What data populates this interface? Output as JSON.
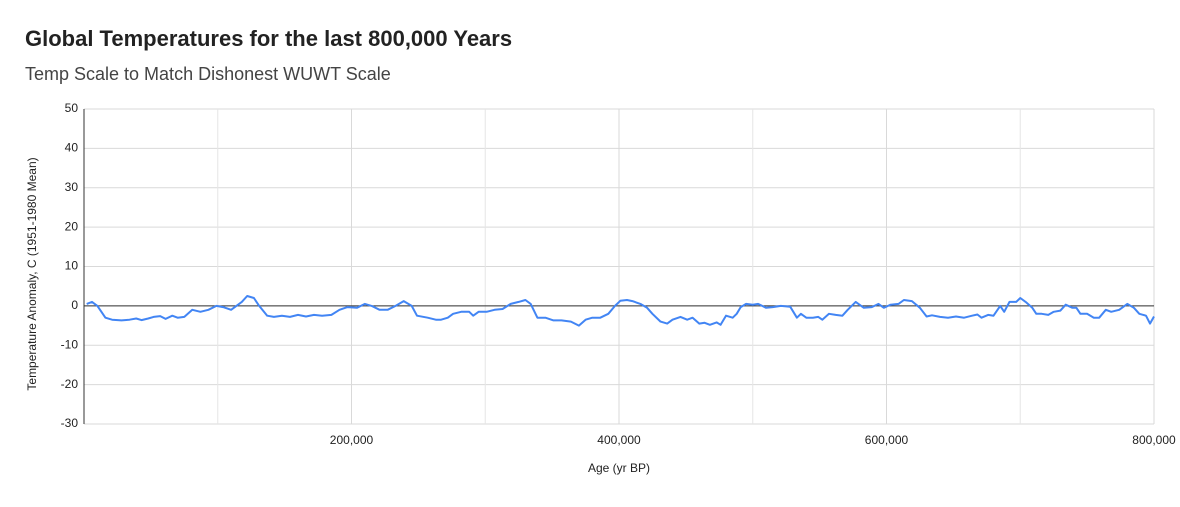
{
  "chart_data": {
    "type": "line",
    "title": "Global Temperatures for the last 800,000 Years",
    "subtitle": "Temp Scale to Match Dishonest WUWT Scale",
    "x_label": "Age (yr BP)",
    "y_label": "Temperature Anomaly, C (1951-1980 Mean)",
    "xlim": [
      0,
      800000
    ],
    "xticks": [
      {
        "value": 200000,
        "label": "200,000"
      },
      {
        "value": 400000,
        "label": "400,000"
      },
      {
        "value": 600000,
        "label": "600,000"
      },
      {
        "value": 800000,
        "label": "800,000"
      }
    ],
    "xgrid": [
      100000,
      300000,
      500000,
      700000
    ],
    "ylim": [
      -30,
      50
    ],
    "yticks": [
      -30,
      -20,
      -10,
      0,
      10,
      20,
      30,
      40,
      50
    ],
    "grid": true,
    "series": [
      {
        "name": "Temperature Anomaly",
        "color": "#4285f4",
        "x": [
          2000,
          6000,
          10000,
          16000,
          21000,
          28000,
          34000,
          39000,
          43000,
          48000,
          52000,
          57000,
          61000,
          66000,
          70000,
          75000,
          81000,
          87000,
          93000,
          99000,
          104000,
          110000,
          118000,
          122000,
          127000,
          131000,
          137000,
          142000,
          148000,
          154000,
          160000,
          166000,
          172000,
          178000,
          185000,
          191000,
          197000,
          204000,
          210000,
          215000,
          221000,
          227000,
          233000,
          239000,
          245000,
          249000,
          257000,
          263000,
          267000,
          272000,
          276000,
          282000,
          288000,
          291000,
          295000,
          301000,
          307000,
          313000,
          319000,
          325000,
          330000,
          334000,
          339000,
          345000,
          351000,
          357000,
          364000,
          370000,
          375000,
          380000,
          386000,
          392000,
          397000,
          401000,
          406000,
          410000,
          416000,
          421000,
          425000,
          431000,
          436000,
          440000,
          446000,
          451000,
          455000,
          460000,
          464000,
          468000,
          473000,
          476000,
          480000,
          485000,
          488000,
          491000,
          495000,
          500000,
          504000,
          510000,
          515000,
          521000,
          528000,
          533000,
          536000,
          540000,
          545000,
          549000,
          552000,
          557000,
          562000,
          567000,
          571000,
          577000,
          583000,
          589000,
          594000,
          598000,
          603000,
          609000,
          613000,
          619000,
          625000,
          630000,
          634000,
          640000,
          646000,
          652000,
          658000,
          664000,
          668000,
          671000,
          676000,
          680000,
          685000,
          688000,
          692000,
          697000,
          700000,
          704000,
          709000,
          712000,
          716000,
          721000,
          725000,
          730000,
          734000,
          739000,
          742000,
          745000,
          750000,
          755000,
          759000,
          764000,
          768000,
          774000,
          780000,
          785000,
          789000,
          794000,
          797000,
          800000
        ],
        "values": [
          0.5,
          1,
          0,
          -3,
          -3.5,
          -3.7,
          -3.5,
          -3.2,
          -3.6,
          -3.2,
          -2.8,
          -2.6,
          -3.3,
          -2.5,
          -3,
          -2.8,
          -1,
          -1.5,
          -1,
          0,
          -0.3,
          -1,
          1,
          2.5,
          2,
          0,
          -2.5,
          -2.8,
          -2.5,
          -2.8,
          -2.3,
          -2.7,
          -2.3,
          -2.5,
          -2.3,
          -1,
          -0.3,
          -0.5,
          0.5,
          0,
          -1,
          -1,
          0,
          1.2,
          0,
          -2.5,
          -3,
          -3.5,
          -3.5,
          -3,
          -2,
          -1.5,
          -1.5,
          -2.5,
          -1.5,
          -1.5,
          -1,
          -0.8,
          0.5,
          1,
          1.5,
          0.5,
          -3,
          -3,
          -3.7,
          -3.7,
          -4,
          -5,
          -3.5,
          -3,
          -3,
          -2,
          0,
          1.3,
          1.5,
          1.2,
          0.5,
          -0.5,
          -2,
          -4,
          -4.5,
          -3.5,
          -2.8,
          -3.5,
          -3,
          -4.5,
          -4.3,
          -4.8,
          -4.2,
          -4.8,
          -2.5,
          -3,
          -2,
          -0.3,
          0.5,
          0.3,
          0.5,
          -0.5,
          -0.3,
          0,
          -0.2,
          -3,
          -2,
          -3,
          -3,
          -2.8,
          -3.5,
          -2,
          -2.3,
          -2.5,
          -1,
          1,
          -0.5,
          -0.3,
          0.5,
          -0.5,
          0.3,
          0.5,
          1.5,
          1.2,
          -0.5,
          -2.7,
          -2.4,
          -2.8,
          -3,
          -2.7,
          -3,
          -2.5,
          -2.2,
          -3,
          -2.3,
          -2.5,
          0,
          -1.5,
          1,
          1,
          2,
          1,
          -0.5,
          -2,
          -2,
          -2.3,
          -1.5,
          -1.2,
          0.3,
          -0.5,
          -0.5,
          -2,
          -2,
          -3,
          -3,
          -1,
          -1.5,
          -1,
          0.5,
          -0.5,
          -2,
          -2.5,
          -4.5,
          -2.7
        ]
      }
    ]
  }
}
